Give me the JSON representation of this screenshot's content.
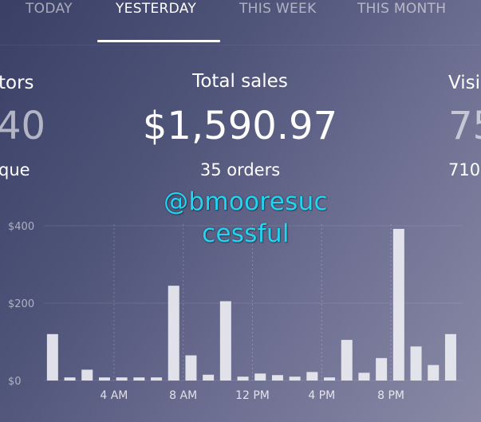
{
  "tabs": [
    {
      "label": "TODAY",
      "active": false
    },
    {
      "label": "YESTERDAY",
      "active": true
    },
    {
      "label": "THIS WEEK",
      "active": false
    },
    {
      "label": "THIS MONTH",
      "active": false
    }
  ],
  "cards": {
    "left": {
      "label": "tors",
      "value": "40",
      "sub": "que"
    },
    "center": {
      "label": "Total sales",
      "value": "$1,590.97",
      "sub": "35 orders"
    },
    "right": {
      "label": "Visi",
      "value": "75",
      "sub": "710"
    }
  },
  "watermark": {
    "line1": "@bmooresuc",
    "line2": "cessful"
  },
  "colors": {
    "accent_watermark": "#1fd6f2",
    "bar": "#ececf2"
  },
  "chart_data": {
    "type": "bar",
    "title": "",
    "xlabel": "",
    "ylabel": "",
    "ylim": [
      0,
      400
    ],
    "y_ticks": [
      "$0",
      "$200",
      "$400"
    ],
    "y_tick_values": [
      0,
      200,
      400
    ],
    "x_tick_labels": [
      "4 AM",
      "8 AM",
      "12 PM",
      "4 PM",
      "8 PM"
    ],
    "x_tick_hours": [
      4,
      8,
      12,
      16,
      20
    ],
    "hours": [
      0,
      1,
      2,
      3,
      4,
      5,
      6,
      7,
      8,
      9,
      10,
      11,
      12,
      13,
      14,
      15,
      16,
      17,
      18,
      19,
      20,
      21,
      22,
      23
    ],
    "values": [
      120,
      8,
      28,
      8,
      8,
      8,
      8,
      245,
      65,
      15,
      205,
      10,
      18,
      14,
      10,
      22,
      8,
      105,
      20,
      58,
      392,
      88,
      40,
      120
    ]
  }
}
